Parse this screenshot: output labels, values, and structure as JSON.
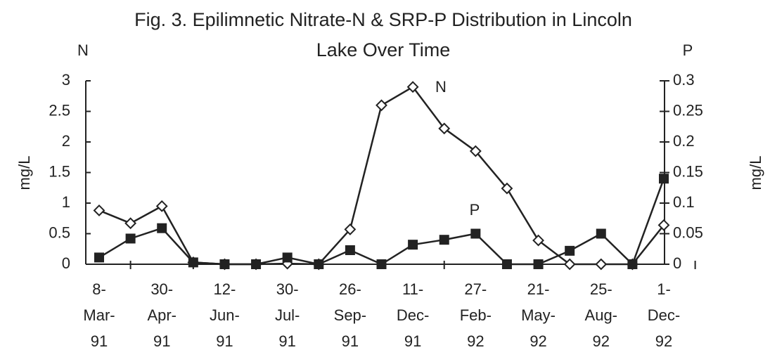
{
  "chart_data": {
    "type": "line",
    "title": [
      "Fig. 3.  Epilimnetic Nitrate-N & SRP-P Distribution in Lincoln",
      "Lake Over Time"
    ],
    "y_axis_title": "N",
    "y2_axis_title": "P",
    "ylabel": "mg/L",
    "y2label": "mg/L",
    "annotations": [
      "N",
      "P"
    ],
    "categories": [
      "8-Mar-91",
      null,
      "30-Apr-91",
      null,
      "12-Jun-91",
      null,
      "30-Jul-91",
      null,
      "26-Sep-91",
      null,
      "11-Dec-91",
      null,
      "27-Feb-92",
      null,
      "21-May-92",
      null,
      "25-Aug-92",
      null,
      "1-Dec-92"
    ],
    "series": [
      {
        "name": "N",
        "color": "#222222",
        "marker": "diamond",
        "axis": "y",
        "values": [
          0.88,
          0.67,
          0.95,
          0.03,
          0,
          0,
          0.01,
          0,
          0.57,
          2.6,
          2.9,
          2.22,
          1.85,
          1.24,
          0.39,
          0,
          0,
          0,
          0.64
        ]
      },
      {
        "name": "P",
        "color": "#222222",
        "marker": "square",
        "axis": "y2",
        "values": [
          0.011,
          0.042,
          0.059,
          0.003,
          0,
          0,
          0.011,
          0,
          0.023,
          0,
          0.032,
          0.04,
          0.05,
          0,
          0,
          0.022,
          0.05,
          0,
          0.14
        ]
      }
    ],
    "ylim": [
      0,
      3
    ],
    "yticks": [
      0,
      0.5,
      1,
      1.5,
      2,
      2.5,
      3
    ],
    "y2lim": [
      0,
      0.3
    ],
    "y2ticks": [
      0,
      0.05,
      0.1,
      0.15,
      0.2,
      0.25,
      0.3
    ],
    "grid": false
  }
}
